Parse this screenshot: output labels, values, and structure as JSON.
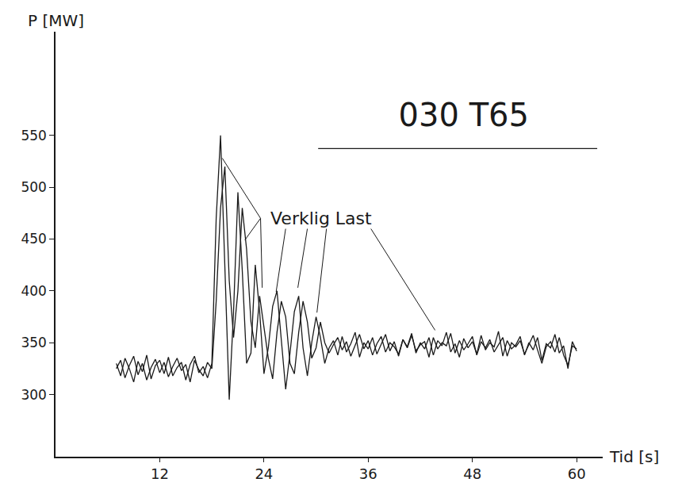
{
  "chart_data": {
    "type": "line",
    "title": "030 T65",
    "xlabel": "Tid [s]",
    "ylabel": "P [MW]",
    "x": [
      7,
      7.5,
      8,
      8.5,
      9,
      9.5,
      10,
      10.5,
      11,
      11.5,
      12,
      12.5,
      13,
      13.5,
      14,
      14.5,
      15,
      15.5,
      16,
      16.5,
      17,
      17.5,
      18,
      18.5,
      19,
      19.5,
      20,
      20.5,
      21,
      21.5,
      22,
      22.5,
      23,
      23.5,
      24,
      24.5,
      25,
      25.5,
      26,
      26.5,
      27,
      27.5,
      28,
      28.5,
      29,
      29.5,
      30,
      30.5,
      31,
      31.5,
      32,
      32.5,
      33,
      33.5,
      34,
      34.5,
      35,
      35.5,
      36,
      36.5,
      37,
      37.5,
      38,
      38.5,
      39,
      39.5,
      40,
      40.5,
      41,
      41.5,
      42,
      42.5,
      43,
      43.5,
      44,
      44.5,
      45,
      45.5,
      46,
      46.5,
      47,
      47.5,
      48,
      48.5,
      49,
      49.5,
      50,
      50.5,
      51,
      51.5,
      52,
      52.5,
      53,
      53.5,
      54,
      54.5,
      55,
      55.5,
      56,
      56.5,
      57,
      57.5,
      58,
      58.5,
      59,
      59.5,
      60
    ],
    "series": [
      {
        "color": "#1a1a1a",
        "values": [
          330,
          318,
          335,
          325,
          312,
          332,
          322,
          338,
          315,
          328,
          333,
          320,
          336,
          318,
          326,
          331,
          314,
          329,
          337,
          321,
          327,
          316,
          330,
          470,
          550,
          420,
          295,
          380,
          495,
          420,
          330,
          340,
          425,
          380,
          320,
          345,
          385,
          400,
          350,
          305,
          340,
          380,
          395,
          345,
          318,
          350,
          375,
          355,
          330,
          345,
          352,
          338,
          356,
          341,
          349,
          360,
          336,
          350,
          344,
          355,
          339,
          348,
          358,
          342,
          351,
          337,
          353,
          346,
          359,
          340,
          350,
          344,
          355,
          338,
          352,
          347,
          360,
          341,
          349,
          336,
          354,
          345,
          351,
          339,
          357,
          343,
          350,
          346,
          361,
          337,
          352,
          344,
          348,
          356,
          338,
          350,
          343,
          355,
          333,
          349,
          345,
          358,
          340,
          347,
          325,
          351,
          342
        ]
      },
      {
        "color": "#1a1a1a",
        "values": [
          325,
          333,
          316,
          328,
          337,
          319,
          330,
          314,
          326,
          334,
          321,
          331,
          317,
          327,
          335,
          323,
          329,
          312,
          333,
          324,
          318,
          331,
          325,
          390,
          480,
          520,
          410,
          355,
          400,
          480,
          440,
          370,
          345,
          395,
          365,
          335,
          315,
          360,
          390,
          375,
          330,
          320,
          360,
          390,
          370,
          335,
          345,
          370,
          350,
          340,
          348,
          355,
          343,
          351,
          337,
          347,
          358,
          344,
          352,
          338,
          349,
          356,
          341,
          350,
          346,
          339,
          353,
          345,
          357,
          342,
          348,
          351,
          336,
          355,
          344,
          350,
          347,
          359,
          340,
          352,
          343,
          349,
          356,
          338,
          351,
          345,
          353,
          341,
          348,
          355,
          337,
          350,
          346,
          352,
          339,
          348,
          357,
          343,
          330,
          346,
          351,
          341,
          355,
          338,
          328,
          347,
          344
        ]
      }
    ],
    "xlim": [
      0,
      63
    ],
    "ylim": [
      240,
      650
    ],
    "xticks": [
      12,
      24,
      36,
      48,
      60
    ],
    "yticks": [
      300,
      350,
      400,
      450,
      500,
      550
    ],
    "grid": false,
    "annotations": [
      {
        "text": "Verklig Last",
        "x": 30.6,
        "y": 470,
        "targets": [
          [
            19.2,
            528
          ],
          [
            21.8,
            449
          ],
          [
            23.8,
            403
          ],
          [
            25.4,
            399
          ],
          [
            27.9,
            403
          ],
          [
            30.1,
            379
          ],
          [
            43.7,
            362
          ]
        ]
      }
    ]
  }
}
